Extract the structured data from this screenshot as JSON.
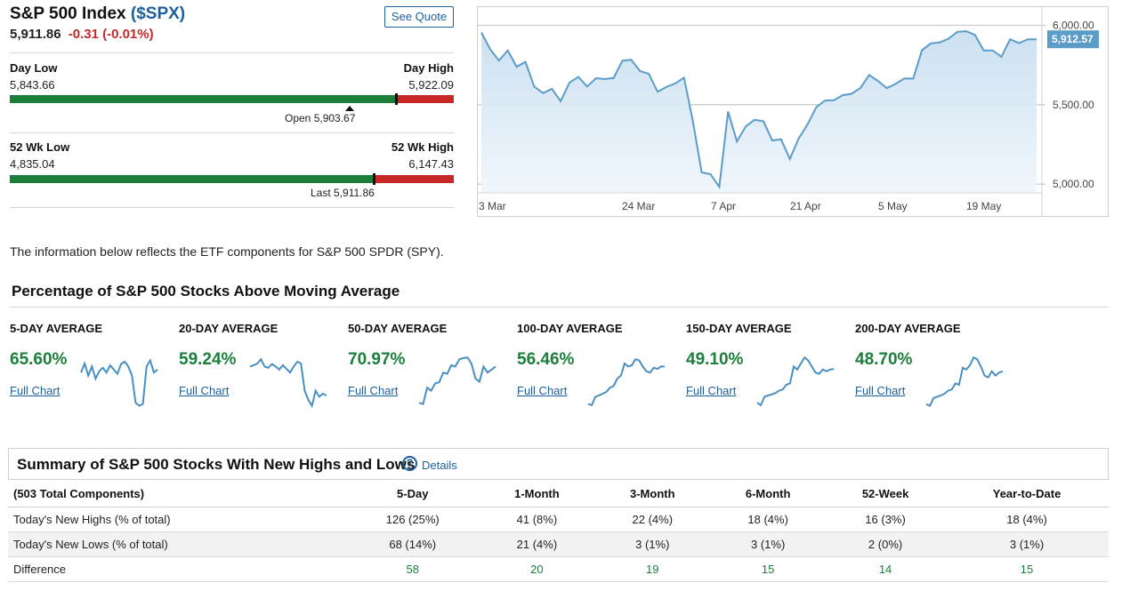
{
  "header": {
    "title": "S&P 500 Index",
    "symbol": "($SPX)",
    "price": "5,911.86",
    "change": "-0.31 (-0.01%)",
    "see_quote": "See Quote"
  },
  "day_range": {
    "low_label": "Day Low",
    "low_value": "5,843.66",
    "high_label": "Day High",
    "high_value": "5,922.09",
    "marker_label": "Open 5,903.67",
    "fill_fraction": 0.87,
    "marker_fraction": 0.765
  },
  "wk52_range": {
    "low_label": "52 Wk Low",
    "low_value": "4,835.04",
    "high_label": "52 Wk High",
    "high_value": "6,147.43",
    "marker_label": "Last 5,911.86",
    "fill_fraction": 0.82,
    "marker_fraction": 0.82
  },
  "main_chart": {
    "type": "area",
    "x_ticks": [
      "3 Mar",
      "24 Mar",
      "7 Apr",
      "21 Apr",
      "5 May",
      "19 May"
    ],
    "y_ticks": [
      "6,000.00",
      "5,500.00",
      "5,000.00"
    ],
    "ylim": [
      4950,
      6070
    ],
    "last_label": "5,912.57",
    "color": "#5b9cc9",
    "values": [
      5955,
      5849,
      5778,
      5842,
      5739,
      5770,
      5614,
      5573,
      5600,
      5522,
      5639,
      5675,
      5615,
      5667,
      5662,
      5668,
      5777,
      5783,
      5712,
      5694,
      5581,
      5612,
      5634,
      5670,
      5396,
      5074,
      5062,
      4982,
      5457,
      5268,
      5363,
      5405,
      5396,
      5275,
      5282,
      5158,
      5287,
      5375,
      5484,
      5526,
      5528,
      5560,
      5569,
      5604,
      5687,
      5650,
      5604,
      5631,
      5665,
      5664,
      5844,
      5886,
      5892,
      5916,
      5959,
      5963,
      5940,
      5842,
      5842,
      5802,
      5912,
      5888,
      5912,
      5912
    ]
  },
  "note": "The information below reflects the ETF components for S&P 500 SPDR (SPY).",
  "ma_section": {
    "title": "Percentage of S&P 500 Stocks Above Moving Average",
    "link_label": "Full Chart",
    "spark_color": "#4a8fc2",
    "items": [
      {
        "label": "5-DAY AVERAGE",
        "value": "65.60%",
        "spark": [
          60,
          75,
          55,
          70,
          50,
          62,
          68,
          60,
          72,
          65,
          58,
          74,
          78,
          70,
          55,
          10,
          5,
          8,
          70,
          80,
          60,
          65
        ]
      },
      {
        "label": "20-DAY AVERAGE",
        "value": "59.24%",
        "spark": [
          70,
          72,
          75,
          82,
          70,
          68,
          74,
          70,
          65,
          72,
          66,
          60,
          70,
          78,
          75,
          30,
          15,
          5,
          30,
          20,
          25,
          22
        ]
      },
      {
        "label": "50-DAY AVERAGE",
        "value": "70.97%",
        "spark": [
          10,
          8,
          35,
          30,
          42,
          44,
          60,
          58,
          72,
          70,
          82,
          84,
          85,
          75,
          50,
          45,
          70,
          60,
          65,
          70
        ]
      },
      {
        "label": "100-DAY AVERAGE",
        "value": "56.46%",
        "spark": [
          8,
          6,
          20,
          22,
          25,
          28,
          35,
          38,
          50,
          55,
          75,
          70,
          72,
          82,
          80,
          70,
          62,
          60,
          68,
          66,
          70,
          70
        ]
      },
      {
        "label": "150-DAY AVERAGE",
        "value": "49.10%",
        "spark": [
          10,
          6,
          20,
          22,
          24,
          26,
          30,
          32,
          40,
          42,
          70,
          65,
          75,
          85,
          80,
          70,
          60,
          58,
          65,
          62,
          65,
          66
        ]
      },
      {
        "label": "200-DAY AVERAGE",
        "value": "48.70%",
        "spark": [
          8,
          5,
          18,
          20,
          22,
          25,
          30,
          32,
          42,
          40,
          68,
          65,
          72,
          85,
          82,
          70,
          55,
          52,
          62,
          55,
          60,
          62
        ]
      }
    ]
  },
  "summary": {
    "title": "Summary of S&P 500 Stocks With New Highs and Lows",
    "details_label": "Details",
    "columns": [
      "(503 Total Components)",
      "5-Day",
      "1-Month",
      "3-Month",
      "6-Month",
      "52-Week",
      "Year-to-Date"
    ],
    "rows": [
      {
        "label": "Today's New Highs (% of total)",
        "cells": [
          "126 (25%)",
          "41 (8%)",
          "22 (4%)",
          "18 (4%)",
          "16 (3%)",
          "18 (4%)"
        ]
      },
      {
        "label": "Today's New Lows (% of total)",
        "cells": [
          "68 (14%)",
          "21 (4%)",
          "3 (1%)",
          "3 (1%)",
          "2 (0%)",
          "3 (1%)"
        ]
      },
      {
        "label": "Difference",
        "cells": [
          "58",
          "20",
          "19",
          "15",
          "14",
          "15"
        ]
      }
    ]
  }
}
